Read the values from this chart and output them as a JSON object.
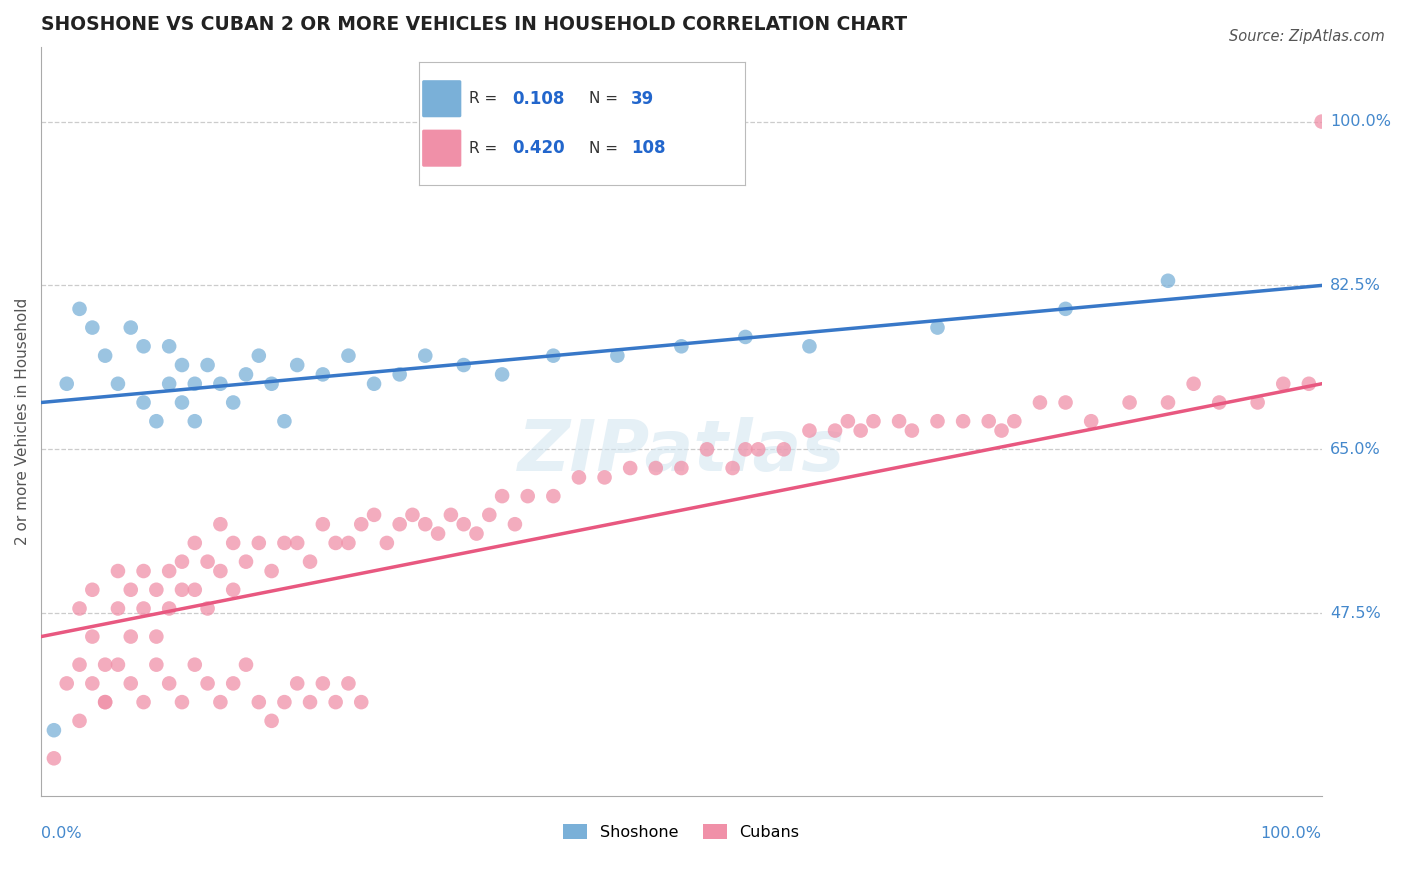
{
  "title": "SHOSHONE VS CUBAN 2 OR MORE VEHICLES IN HOUSEHOLD CORRELATION CHART",
  "source": "Source: ZipAtlas.com",
  "ylabel": "2 or more Vehicles in Household",
  "xlim": [
    0,
    100
  ],
  "ylim": [
    28,
    108
  ],
  "ytick_values": [
    47.5,
    65.0,
    82.5,
    100.0
  ],
  "ytick_labels": [
    "47.5%",
    "65.0%",
    "82.5%",
    "100.0%"
  ],
  "R_shoshone": 0.108,
  "N_shoshone": 39,
  "R_cuban": 0.42,
  "N_cuban": 108,
  "shoshone_color": "#7ab0d8",
  "cuban_color": "#f090a8",
  "shoshone_line_color": "#3878c8",
  "cuban_line_color": "#e85880",
  "watermark": "ZIPatlas",
  "shoshone_x": [
    1,
    2,
    3,
    4,
    5,
    6,
    7,
    8,
    8,
    9,
    10,
    10,
    11,
    11,
    12,
    12,
    13,
    14,
    15,
    16,
    17,
    18,
    19,
    20,
    22,
    24,
    26,
    28,
    30,
    33,
    36,
    40,
    45,
    50,
    55,
    60,
    70,
    80,
    88
  ],
  "shoshone_y": [
    35,
    72,
    80,
    78,
    75,
    72,
    78,
    70,
    76,
    68,
    72,
    76,
    70,
    74,
    72,
    68,
    74,
    72,
    70,
    73,
    75,
    72,
    68,
    74,
    73,
    75,
    72,
    73,
    75,
    74,
    73,
    75,
    75,
    76,
    77,
    76,
    78,
    80,
    83
  ],
  "cuban_x": [
    1,
    2,
    3,
    3,
    4,
    4,
    5,
    5,
    6,
    6,
    7,
    7,
    8,
    8,
    9,
    9,
    10,
    10,
    11,
    11,
    12,
    12,
    13,
    13,
    14,
    14,
    15,
    15,
    16,
    17,
    18,
    19,
    20,
    21,
    22,
    23,
    24,
    25,
    26,
    27,
    28,
    29,
    30,
    31,
    32,
    33,
    34,
    35,
    36,
    37,
    38,
    40,
    42,
    44,
    46,
    48,
    50,
    52,
    54,
    55,
    56,
    58,
    60,
    62,
    63,
    64,
    65,
    67,
    68,
    70,
    72,
    74,
    75,
    76,
    78,
    80,
    82,
    85,
    88,
    90,
    92,
    95,
    97,
    99,
    100,
    3,
    4,
    5,
    6,
    7,
    8,
    9,
    10,
    11,
    12,
    13,
    14,
    15,
    16,
    17,
    18,
    19,
    20,
    21,
    22,
    23,
    24,
    25
  ],
  "cuban_y": [
    32,
    40,
    48,
    42,
    50,
    45,
    42,
    38,
    52,
    48,
    50,
    45,
    52,
    48,
    50,
    45,
    52,
    48,
    53,
    50,
    55,
    50,
    53,
    48,
    57,
    52,
    55,
    50,
    53,
    55,
    52,
    55,
    55,
    53,
    57,
    55,
    55,
    57,
    58,
    55,
    57,
    58,
    57,
    56,
    58,
    57,
    56,
    58,
    60,
    57,
    60,
    60,
    62,
    62,
    63,
    63,
    63,
    65,
    63,
    65,
    65,
    65,
    67,
    67,
    68,
    67,
    68,
    68,
    67,
    68,
    68,
    68,
    67,
    68,
    70,
    70,
    68,
    70,
    70,
    72,
    70,
    70,
    72,
    72,
    100,
    36,
    40,
    38,
    42,
    40,
    38,
    42,
    40,
    38,
    42,
    40,
    38,
    40,
    42,
    38,
    36,
    38,
    40,
    38,
    40,
    38,
    40,
    38
  ]
}
